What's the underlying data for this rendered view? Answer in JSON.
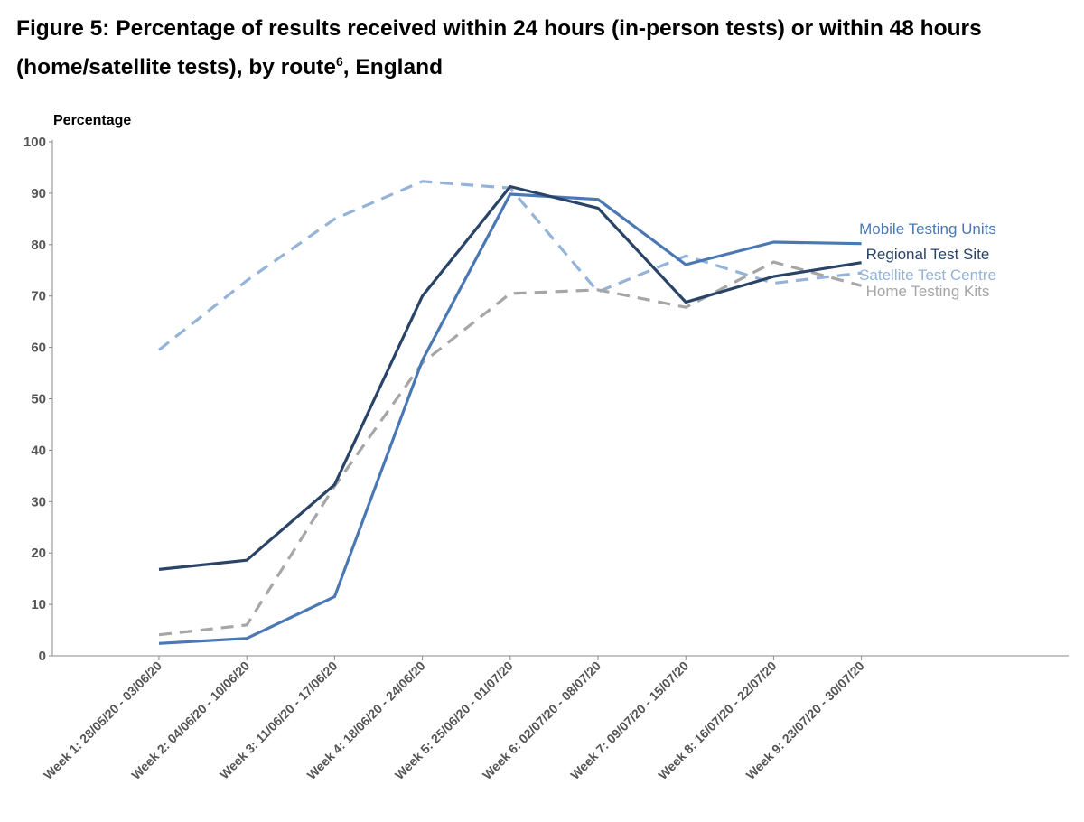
{
  "figure": {
    "title_main": "Figure 5: Percentage of results received within 24 hours (in-person tests) or within 48 hours (home/satellite tests), by route",
    "title_footnote": "6",
    "title_suffix": ", England"
  },
  "chart_data": {
    "type": "line",
    "title": "Figure 5: Percentage of results received within 24 hours (in-person tests) or within 48 hours (home/satellite tests), by route6, England",
    "ylabel": "Percentage",
    "xlabel": "",
    "ylim": [
      0,
      100
    ],
    "yticks": [
      0,
      10,
      20,
      30,
      40,
      50,
      60,
      70,
      80,
      90,
      100
    ],
    "categories": [
      "Week 1: 28/05/20 - 03/06/20",
      "Week 2: 04/06/20 - 10/06/20",
      "Week 3: 11/06/20 - 17/06/20",
      "Week 4: 18/06/20 - 24/06/20",
      "Week 5: 25/06/20 - 01/07/20",
      "Week 6: 02/07/20 - 08/07/20",
      "Week 7: 09/07/20 - 15/07/20",
      "Week 8: 16/07/20 - 22/07/20",
      "Week 9: 23/07/20 - 30/07/20"
    ],
    "grid": false,
    "legend": "inline labels at line ends (right)",
    "series": [
      {
        "name": "Satellite Test Centre",
        "style": "dashed",
        "color": "#94b3d8",
        "values": [
          59.5,
          73,
          85,
          92.3,
          91,
          70.8,
          77.8,
          72.5,
          74.5
        ]
      },
      {
        "name": "Home Testing Kits",
        "style": "dashed",
        "color": "#a6a6a6",
        "values": [
          4.1,
          6,
          33,
          57,
          70.5,
          71.2,
          67.8,
          76.6,
          72
        ]
      },
      {
        "name": "Mobile Testing Units",
        "style": "solid",
        "color": "#4a78b5",
        "values": [
          2.4,
          3.4,
          11.5,
          57.5,
          89.8,
          88.8,
          76.1,
          80.5,
          80.2
        ]
      },
      {
        "name": "Regional Test Site",
        "style": "solid",
        "color": "#2a4468",
        "values": [
          16.8,
          18.6,
          33.3,
          70,
          91.3,
          87.1,
          68.8,
          73.8,
          76.5
        ]
      }
    ],
    "legend_order": [
      "Mobile Testing Units",
      "Regional Test Site",
      "Satellite Test Centre",
      "Home Testing Kits"
    ]
  }
}
